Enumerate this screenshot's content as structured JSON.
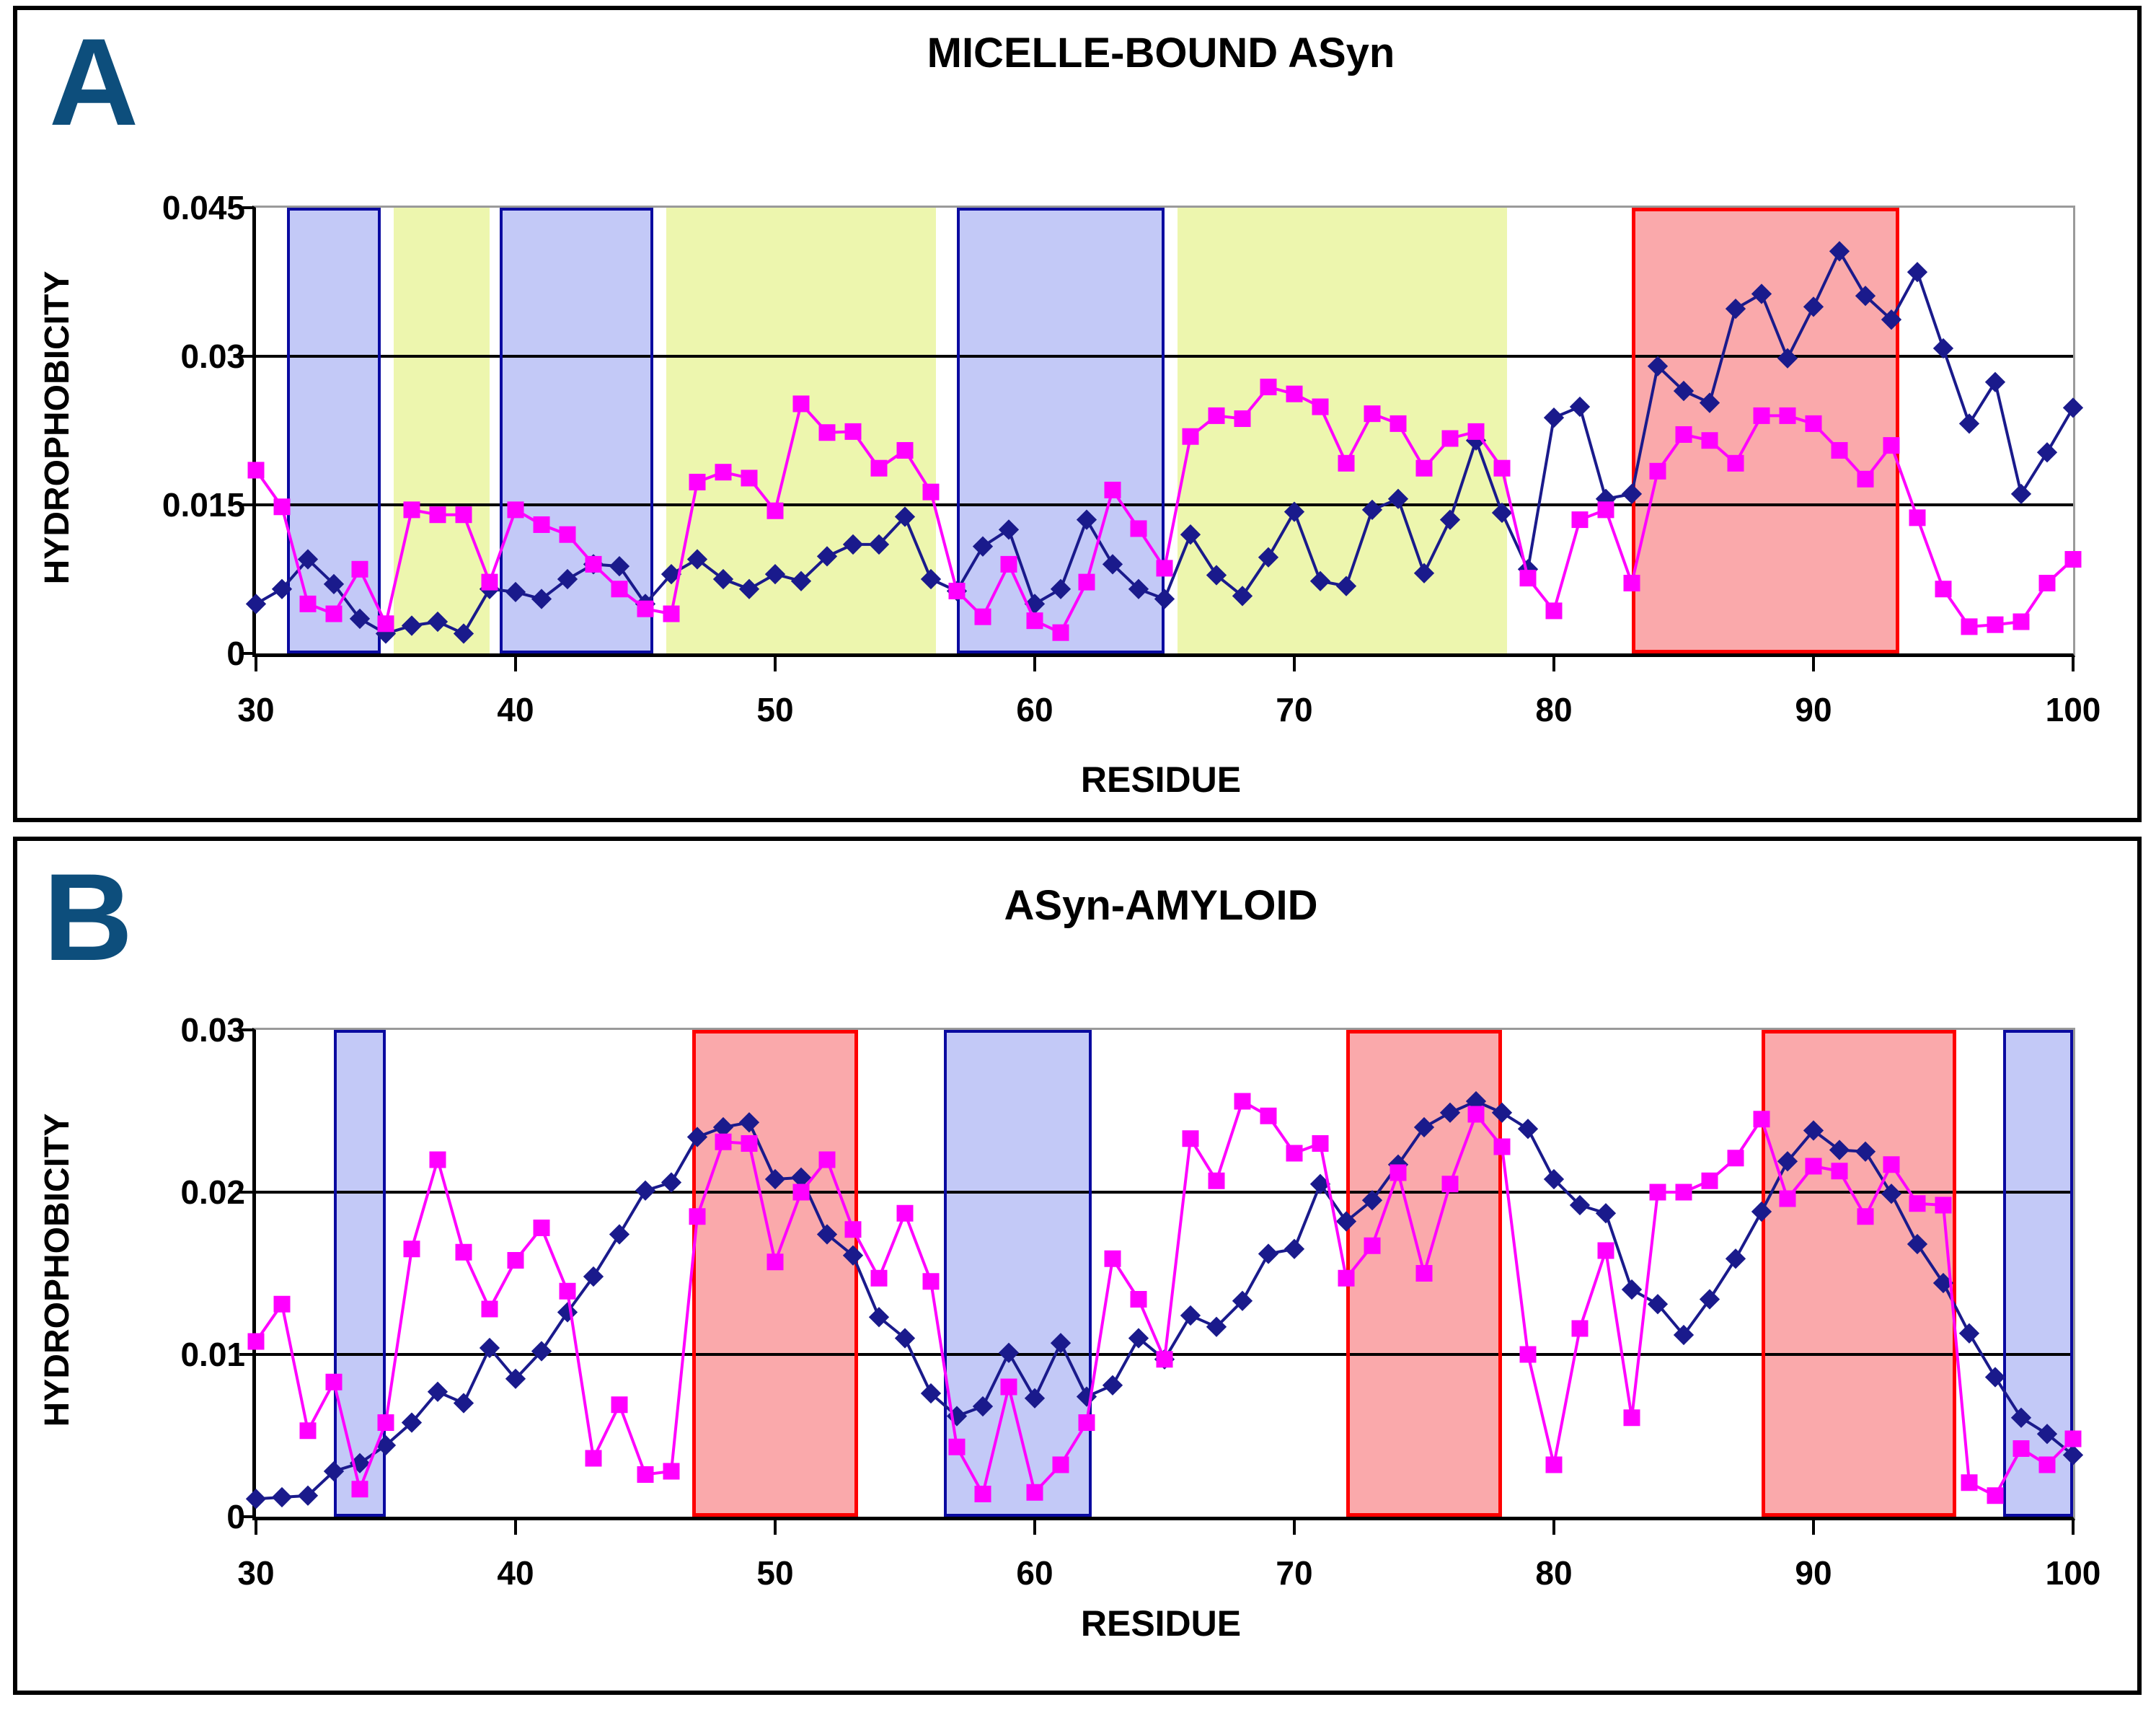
{
  "figure": {
    "background": "#ffffff",
    "panel_border_color": "#000000",
    "panel_letter_color": "#0d4e7c",
    "frame_gray": "#9a9a9a",
    "gridline_color": "#000000"
  },
  "band_styles": {
    "blue": {
      "fill": "#c3c9f7",
      "border": "#0a0aa0",
      "border_width": 4
    },
    "yellow": {
      "fill": "#edf6ae",
      "border": null,
      "border_width": 0
    },
    "red": {
      "fill": "#faa9ab",
      "border": "#fe0000",
      "border_width": 5
    }
  },
  "chart_data": [
    {
      "type": "line",
      "panel_label": "A",
      "title": "MICELLE-BOUND ASyn",
      "xlabel": "RESIDUE",
      "ylabel": "HYDROPHOBICITY",
      "xlim": [
        30,
        100
      ],
      "ylim": [
        0,
        0.045
      ],
      "grid": true,
      "legend": "none",
      "x_ticks": [
        30,
        40,
        50,
        60,
        70,
        80,
        90,
        100
      ],
      "y_ticks": [
        {
          "v": 0.045,
          "label": "0.045"
        },
        {
          "v": 0.03,
          "label": "0.03"
        },
        {
          "v": 0.015,
          "label": "0.015"
        },
        {
          "v": 0,
          "label": "0"
        }
      ],
      "bands": [
        {
          "kind": "blue",
          "from": 31.2,
          "to": 34.8
        },
        {
          "kind": "yellow",
          "from": 35.3,
          "to": 39.0
        },
        {
          "kind": "blue",
          "from": 39.4,
          "to": 45.3
        },
        {
          "kind": "yellow",
          "from": 45.8,
          "to": 56.2
        },
        {
          "kind": "blue",
          "from": 57.0,
          "to": 65.0
        },
        {
          "kind": "yellow",
          "from": 65.5,
          "to": 78.2
        },
        {
          "kind": "red",
          "from": 83.0,
          "to": 93.3
        }
      ],
      "x": [
        30,
        31,
        32,
        33,
        34,
        35,
        36,
        37,
        38,
        39,
        40,
        41,
        42,
        43,
        44,
        45,
        46,
        47,
        48,
        49,
        50,
        51,
        52,
        53,
        54,
        55,
        56,
        57,
        58,
        59,
        60,
        61,
        62,
        63,
        64,
        65,
        66,
        67,
        68,
        69,
        70,
        71,
        72,
        73,
        74,
        75,
        76,
        77,
        78,
        79,
        80,
        81,
        82,
        83,
        84,
        85,
        86,
        87,
        88,
        89,
        90,
        91,
        92,
        93,
        94,
        95,
        96,
        97,
        98,
        99,
        100
      ],
      "series": [
        {
          "name": "hydrophobicity-diamond-series",
          "marker": "diamond",
          "color": "#1a1a8c",
          "values": [
            0.005,
            0.0065,
            0.0095,
            0.007,
            0.0035,
            0.002,
            0.0028,
            0.0032,
            0.002,
            0.0065,
            0.0062,
            0.0055,
            0.0075,
            0.009,
            0.0088,
            0.005,
            0.008,
            0.0095,
            0.0075,
            0.0065,
            0.008,
            0.0073,
            0.0098,
            0.011,
            0.011,
            0.0138,
            0.0075,
            0.0063,
            0.0108,
            0.0125,
            0.005,
            0.0065,
            0.0135,
            0.009,
            0.0065,
            0.0055,
            0.012,
            0.0079,
            0.0058,
            0.0097,
            0.0143,
            0.0073,
            0.0068,
            0.0145,
            0.0156,
            0.0081,
            0.0135,
            0.0215,
            0.0142,
            0.0085,
            0.0238,
            0.0249,
            0.0156,
            0.0161,
            0.029,
            0.0265,
            0.0253,
            0.0348,
            0.0363,
            0.0298,
            0.035,
            0.0406,
            0.0361,
            0.0337,
            0.0385,
            0.0308,
            0.0232,
            0.0274,
            0.0161,
            0.0203,
            0.0248
          ]
        },
        {
          "name": "hydrophobicity-square-series",
          "marker": "square",
          "color": "#ff00ff",
          "values": [
            0.0185,
            0.0148,
            0.005,
            0.004,
            0.0085,
            0.003,
            0.0145,
            0.014,
            0.014,
            0.0072,
            0.0145,
            0.013,
            0.012,
            0.009,
            0.0065,
            0.0045,
            0.004,
            0.0173,
            0.0183,
            0.0177,
            0.0144,
            0.0252,
            0.0223,
            0.0224,
            0.0187,
            0.0205,
            0.0163,
            0.0063,
            0.0037,
            0.009,
            0.0033,
            0.0021,
            0.0072,
            0.0165,
            0.0126,
            0.0086,
            0.0219,
            0.024,
            0.0237,
            0.0269,
            0.0262,
            0.0249,
            0.0192,
            0.0242,
            0.0232,
            0.0187,
            0.0217,
            0.0224,
            0.0187,
            0.0076,
            0.0043,
            0.0135,
            0.0145,
            0.0071,
            0.0184,
            0.0221,
            0.0215,
            0.0192,
            0.024,
            0.024,
            0.0232,
            0.0205,
            0.0176,
            0.021,
            0.0137,
            0.0065,
            0.0027,
            0.0029,
            0.0032,
            0.0071,
            0.0095
          ]
        }
      ]
    },
    {
      "type": "line",
      "panel_label": "B",
      "title": "ASyn-AMYLOID",
      "xlabel": "RESIDUE",
      "ylabel": "HYDROPHOBICITY",
      "xlim": [
        30,
        100
      ],
      "ylim": [
        0,
        0.03
      ],
      "grid": true,
      "legend": "none",
      "x_ticks": [
        30,
        40,
        50,
        60,
        70,
        80,
        90,
        100
      ],
      "y_ticks": [
        {
          "v": 0.03,
          "label": "0.03"
        },
        {
          "v": 0.02,
          "label": "0.02"
        },
        {
          "v": 0.01,
          "label": "0.01"
        },
        {
          "v": 0,
          "label": "0"
        }
      ],
      "bands": [
        {
          "kind": "blue",
          "from": 33.0,
          "to": 35.0
        },
        {
          "kind": "red",
          "from": 46.8,
          "to": 53.2
        },
        {
          "kind": "blue",
          "from": 56.5,
          "to": 62.2
        },
        {
          "kind": "red",
          "from": 72.0,
          "to": 78.0
        },
        {
          "kind": "red",
          "from": 88.0,
          "to": 95.5
        },
        {
          "kind": "blue",
          "from": 97.3,
          "to": 100.0
        }
      ],
      "x": [
        30,
        31,
        32,
        33,
        34,
        35,
        36,
        37,
        38,
        39,
        40,
        41,
        42,
        43,
        44,
        45,
        46,
        47,
        48,
        49,
        50,
        51,
        52,
        53,
        54,
        55,
        56,
        57,
        58,
        59,
        60,
        61,
        62,
        63,
        64,
        65,
        66,
        67,
        68,
        69,
        70,
        71,
        72,
        73,
        74,
        75,
        76,
        77,
        78,
        79,
        80,
        81,
        82,
        83,
        84,
        85,
        86,
        87,
        88,
        89,
        90,
        91,
        92,
        93,
        94,
        95,
        96,
        97,
        98,
        99,
        100
      ],
      "series": [
        {
          "name": "hydrophobicity-diamond-series",
          "marker": "diamond",
          "color": "#1a1a8c",
          "values": [
            0.0011,
            0.0012,
            0.0013,
            0.0028,
            0.0033,
            0.0044,
            0.0058,
            0.0077,
            0.007,
            0.0104,
            0.0085,
            0.0102,
            0.0126,
            0.0148,
            0.0174,
            0.0201,
            0.0206,
            0.0234,
            0.024,
            0.0243,
            0.0208,
            0.0209,
            0.0174,
            0.0161,
            0.0123,
            0.011,
            0.0076,
            0.0062,
            0.0068,
            0.0101,
            0.0073,
            0.0107,
            0.0074,
            0.0081,
            0.011,
            0.0097,
            0.0124,
            0.0117,
            0.0133,
            0.0162,
            0.0165,
            0.0205,
            0.0182,
            0.0195,
            0.0217,
            0.024,
            0.0249,
            0.0256,
            0.0249,
            0.0239,
            0.0208,
            0.0192,
            0.0187,
            0.014,
            0.0131,
            0.0112,
            0.0134,
            0.0159,
            0.0188,
            0.0219,
            0.0238,
            0.0226,
            0.0225,
            0.0199,
            0.0168,
            0.0144,
            0.0113,
            0.0086,
            0.0061,
            0.0051,
            0.0038
          ]
        },
        {
          "name": "hydrophobicity-square-series",
          "marker": "square",
          "color": "#ff00ff",
          "values": [
            0.0108,
            0.0131,
            0.0053,
            0.0083,
            0.0017,
            0.0058,
            0.0165,
            0.022,
            0.0163,
            0.0128,
            0.0158,
            0.0178,
            0.0139,
            0.0036,
            0.0069,
            0.0026,
            0.0028,
            0.0185,
            0.0231,
            0.023,
            0.0157,
            0.02,
            0.022,
            0.0177,
            0.0147,
            0.0187,
            0.0145,
            0.0043,
            0.0014,
            0.008,
            0.0015,
            0.0032,
            0.0058,
            0.0159,
            0.0134,
            0.0097,
            0.0233,
            0.0207,
            0.0256,
            0.0247,
            0.0224,
            0.023,
            0.0147,
            0.0167,
            0.0212,
            0.015,
            0.0205,
            0.0248,
            0.0228,
            0.01,
            0.0032,
            0.0116,
            0.0164,
            0.0061,
            0.02,
            0.02,
            0.0207,
            0.0221,
            0.0245,
            0.0196,
            0.0216,
            0.0213,
            0.0185,
            0.0217,
            0.0193,
            0.0192,
            0.0021,
            0.0013,
            0.0042,
            0.0032,
            0.0048
          ]
        }
      ]
    }
  ]
}
